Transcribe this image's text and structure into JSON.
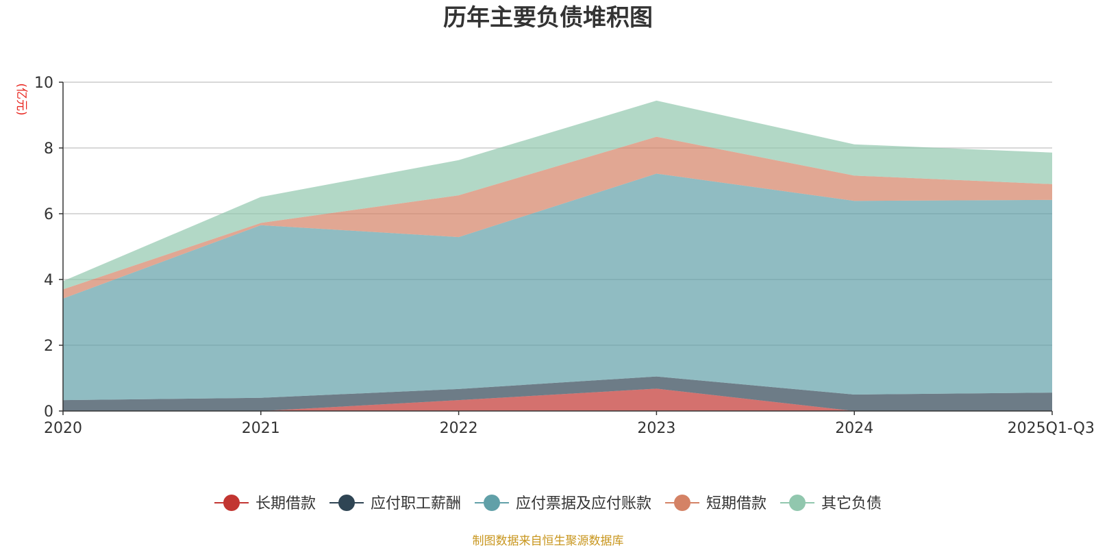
{
  "title": "历年主要负债堆积图",
  "unit": "(亿元)",
  "source": "制图数据来自恒生聚源数据库",
  "chart_data": {
    "type": "area",
    "stacked": true,
    "title": "历年主要负债堆积图",
    "ylabel": "(亿元)",
    "categories": [
      "2020",
      "2021",
      "2022",
      "2023",
      "2024",
      "2025Q1-Q3"
    ],
    "ylim": [
      0,
      10
    ],
    "yticks": [
      "0",
      "2",
      "4",
      "6",
      "8",
      "10"
    ],
    "grid": true,
    "legend_position": "bottom",
    "series": [
      {
        "name": "长期借款",
        "color": "#c23531",
        "values": [
          0,
          0,
          0.33,
          0.68,
          0,
          0
        ]
      },
      {
        "name": "应付职工薪酬",
        "color": "#2f4554",
        "values": [
          0.33,
          0.4,
          0.34,
          0.37,
          0.5,
          0.56
        ]
      },
      {
        "name": "应付票据及应付账款",
        "color": "#61a0a8",
        "values": [
          3.09,
          5.25,
          4.62,
          6.17,
          5.89,
          5.86
        ]
      },
      {
        "name": "短期借款",
        "color": "#d48265",
        "values": [
          0.28,
          0.07,
          1.27,
          1.12,
          0.77,
          0.48
        ]
      },
      {
        "name": "其它负债",
        "color": "#91c7ae",
        "values": [
          0.25,
          0.79,
          1.07,
          1.1,
          0.95,
          0.96
        ]
      }
    ]
  }
}
